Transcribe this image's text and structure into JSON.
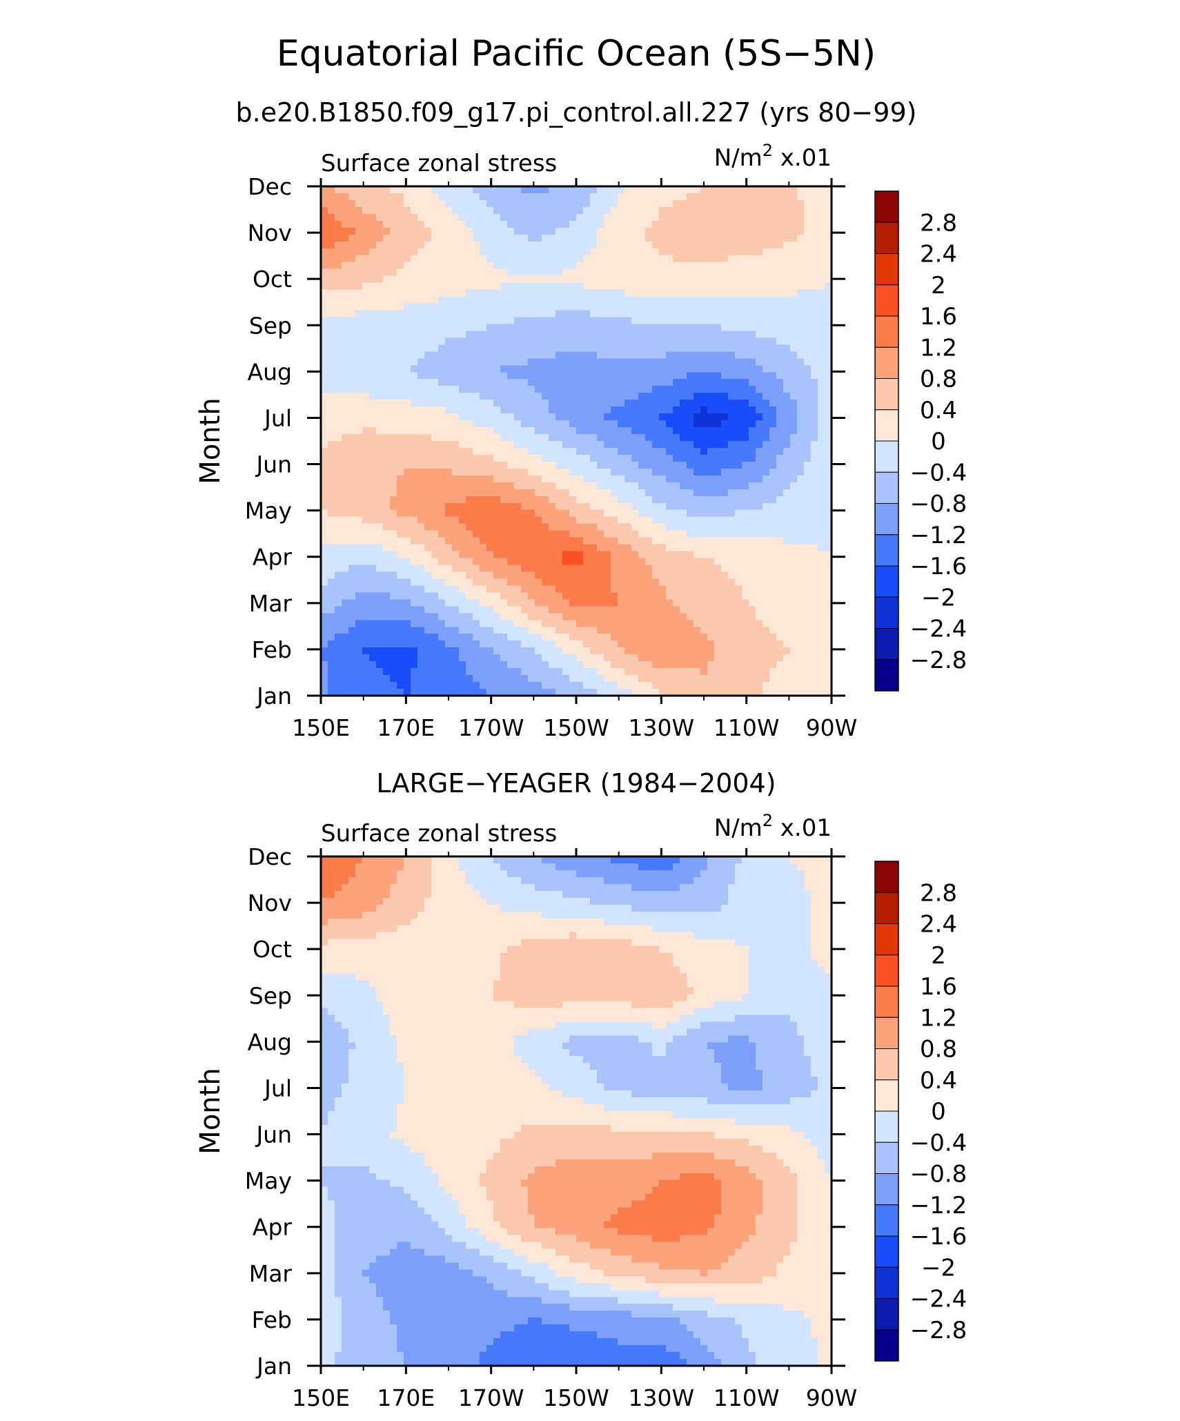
{
  "title": "Equatorial Pacific Ocean (5S−5N)",
  "subtitle": "b.e20.B1850.f09_g17.pi_control.all.227 (yrs 80−99)",
  "colors": {
    "levels": [
      "#07008c",
      "#0b1bab",
      "#0f33d6",
      "#1a4dfa",
      "#4679fe",
      "#7ca0fc",
      "#a9c4fd",
      "#d3e5fe",
      "#fde7d6",
      "#fcc9ae",
      "#fca37c",
      "#fb7b4a",
      "#fb5122",
      "#e23604",
      "#b41d02",
      "#8b0505"
    ]
  },
  "chart_data": [
    {
      "type": "contour",
      "name": "model",
      "field_title": "Surface zonal stress",
      "units_prefix": "N/m",
      "units_exp": "2",
      "units_suffix": " x.01",
      "ylabel": "Month",
      "x_ticks": [
        "150E",
        "170E",
        "170W",
        "150W",
        "130W",
        "110W",
        "90W"
      ],
      "x_values_lon": [
        150,
        160,
        170,
        180,
        190,
        200,
        210,
        220,
        230,
        240,
        250,
        260,
        270
      ],
      "y_ticks": [
        "Jan",
        "Feb",
        "Mar",
        "Apr",
        "May",
        "Jun",
        "Jul",
        "Aug",
        "Sep",
        "Oct",
        "Nov",
        "Dec"
      ],
      "colorbar_labels": [
        "2.8",
        "2.4",
        "2",
        "1.6",
        "1.2",
        "0.8",
        "0.4",
        "0",
        "−0.4",
        "−0.8",
        "−1.2",
        "−1.6",
        "−2",
        "−2.4",
        "−2.8"
      ],
      "levels": [
        -2.8,
        -2.4,
        -2.0,
        -1.6,
        -1.2,
        -0.8,
        -0.4,
        0,
        0.4,
        0.8,
        1.2,
        1.6,
        2.0,
        2.4,
        2.8
      ],
      "values": [
        [
          -1.1,
          -1.5,
          -1.6,
          -1.4,
          -1.2,
          -1.0,
          -0.7,
          -0.2,
          0.4,
          0.7,
          0.5,
          0.2,
          0.0
        ],
        [
          -1.2,
          -1.6,
          -1.7,
          -1.3,
          -0.8,
          -0.4,
          0.2,
          0.8,
          1.1,
          0.9,
          0.6,
          0.4,
          0.0
        ],
        [
          -0.6,
          -1.0,
          -0.9,
          -0.4,
          0.1,
          0.8,
          1.3,
          1.2,
          0.9,
          0.6,
          0.4,
          0.2,
          0.0
        ],
        [
          -0.1,
          -0.3,
          0.0,
          0.6,
          1.2,
          1.5,
          1.7,
          1.1,
          0.6,
          0.4,
          0.3,
          0.1,
          0.0
        ],
        [
          0.4,
          0.6,
          0.9,
          1.3,
          1.5,
          1.2,
          0.6,
          0.2,
          -0.3,
          -0.6,
          -0.4,
          -0.2,
          -0.1
        ],
        [
          0.5,
          0.7,
          0.8,
          0.7,
          0.5,
          0.2,
          -0.2,
          -0.6,
          -1.0,
          -1.4,
          -1.2,
          -0.6,
          -0.1
        ],
        [
          0.2,
          0.3,
          0.2,
          0.1,
          -0.2,
          -0.6,
          -1.0,
          -1.3,
          -1.6,
          -2.2,
          -1.9,
          -1.0,
          -0.2
        ],
        [
          -0.2,
          -0.3,
          -0.4,
          -0.6,
          -0.8,
          -0.9,
          -1.0,
          -0.9,
          -1.0,
          -1.2,
          -1.0,
          -0.6,
          -0.2
        ],
        [
          -0.1,
          -0.2,
          -0.2,
          -0.3,
          -0.4,
          -0.5,
          -0.6,
          -0.5,
          -0.4,
          -0.4,
          -0.3,
          -0.2,
          -0.1
        ],
        [
          0.6,
          0.5,
          0.3,
          0.2,
          0.1,
          0.0,
          0.1,
          0.2,
          0.3,
          0.3,
          0.2,
          0.1,
          0.0
        ],
        [
          1.6,
          1.1,
          0.6,
          0.3,
          -0.2,
          -0.5,
          -0.3,
          0.3,
          0.5,
          0.6,
          0.6,
          0.5,
          0.2
        ],
        [
          0.9,
          0.5,
          0.3,
          -0.2,
          -0.6,
          -0.9,
          -0.7,
          -0.1,
          0.3,
          0.4,
          0.5,
          0.5,
          0.1
        ]
      ]
    },
    {
      "type": "contour",
      "name": "observed",
      "title": "LARGE−YEAGER (1984−2004)",
      "field_title": "Surface zonal stress",
      "units_prefix": "N/m",
      "units_exp": "2",
      "units_suffix": " x.01",
      "ylabel": "Month",
      "x_ticks": [
        "150E",
        "170E",
        "170W",
        "150W",
        "130W",
        "110W",
        "90W"
      ],
      "x_values_lon": [
        150,
        160,
        170,
        180,
        190,
        200,
        210,
        220,
        230,
        240,
        250,
        260,
        270
      ],
      "y_ticks": [
        "Jan",
        "Feb",
        "Mar",
        "Apr",
        "May",
        "Jun",
        "Jul",
        "Aug",
        "Sep",
        "Oct",
        "Nov",
        "Dec"
      ],
      "colorbar_labels": [
        "2.8",
        "2.4",
        "2",
        "1.6",
        "1.2",
        "0.8",
        "0.4",
        "0",
        "−0.4",
        "−0.8",
        "−1.2",
        "−1.6",
        "−2",
        "−2.4",
        "−2.8"
      ],
      "levels": [
        -2.8,
        -2.4,
        -2.0,
        -1.6,
        -1.2,
        -0.8,
        -0.4,
        0,
        0.4,
        0.8,
        1.2,
        1.6,
        2.0,
        2.4,
        2.8
      ],
      "values": [
        [
          -0.3,
          -0.6,
          -0.8,
          -1.0,
          -1.3,
          -1.5,
          -1.6,
          -1.4,
          -1.5,
          -1.0,
          -0.5,
          -0.2,
          0.1
        ],
        [
          -0.2,
          -0.6,
          -0.9,
          -1.0,
          -1.1,
          -1.2,
          -1.1,
          -1.0,
          -0.9,
          -0.6,
          -0.3,
          -0.1,
          0.1
        ],
        [
          -0.2,
          -0.8,
          -1.0,
          -1.0,
          -0.7,
          -0.3,
          0.2,
          0.5,
          0.7,
          0.8,
          0.6,
          0.3,
          0.0
        ],
        [
          -0.3,
          -0.6,
          -0.7,
          -0.3,
          0.3,
          0.8,
          1.0,
          1.3,
          1.4,
          1.3,
          0.9,
          0.5,
          0.0
        ],
        [
          -0.4,
          -0.5,
          -0.3,
          0.1,
          0.5,
          0.9,
          1.0,
          1.0,
          1.2,
          1.4,
          1.0,
          0.5,
          0.0
        ],
        [
          -0.4,
          -0.2,
          0.1,
          0.2,
          0.3,
          0.5,
          0.6,
          0.5,
          0.5,
          0.4,
          0.3,
          0.1,
          -0.2
        ],
        [
          -0.5,
          -0.3,
          0.0,
          0.2,
          0.2,
          0.1,
          -0.2,
          -0.5,
          -0.6,
          -0.7,
          -0.9,
          -0.6,
          -0.3
        ],
        [
          -0.7,
          -0.3,
          0.1,
          0.3,
          0.2,
          -0.2,
          -0.5,
          -0.6,
          -0.3,
          -0.8,
          -0.9,
          -0.5,
          -0.2
        ],
        [
          -0.3,
          -0.1,
          0.2,
          0.3,
          0.4,
          0.6,
          0.6,
          0.6,
          0.7,
          0.3,
          0.0,
          -0.3,
          -0.2
        ],
        [
          0.3,
          0.2,
          0.2,
          0.2,
          0.3,
          0.6,
          0.7,
          0.6,
          0.4,
          0.2,
          0.0,
          -0.3,
          0.3
        ],
        [
          1.2,
          1.0,
          0.6,
          0.2,
          0.0,
          -0.2,
          -0.3,
          -0.5,
          -0.6,
          -0.6,
          -0.2,
          -0.1,
          0.1
        ],
        [
          1.6,
          1.2,
          0.8,
          0.1,
          -0.4,
          -0.8,
          -1.1,
          -1.3,
          -1.5,
          -0.9,
          -0.3,
          0.0,
          0.1
        ]
      ]
    }
  ]
}
